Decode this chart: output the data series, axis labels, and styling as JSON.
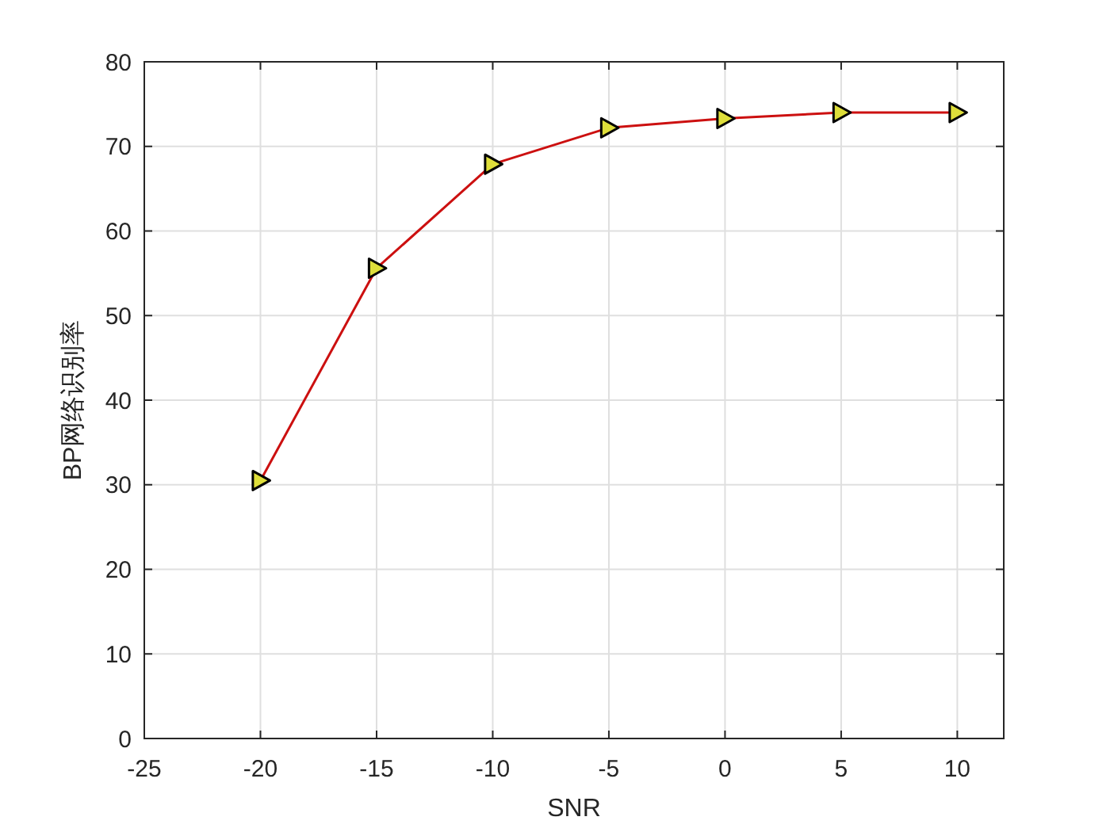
{
  "chart_data": {
    "type": "line",
    "xlabel": "SNR",
    "ylabel": "BP网络识别率",
    "x": [
      -20,
      -15,
      -10,
      -5,
      0,
      5,
      10
    ],
    "series": [
      {
        "color": "#cc1010",
        "values": [
          30.5,
          55.6,
          67.9,
          72.2,
          73.3,
          74.0,
          74.0
        ]
      }
    ],
    "xlim": [
      -25,
      12
    ],
    "xticks": [
      -25,
      -20,
      -15,
      -10,
      -5,
      0,
      5,
      10
    ],
    "ylim": [
      0,
      80
    ],
    "yticks": [
      0,
      10,
      20,
      30,
      40,
      50,
      60,
      70,
      80
    ],
    "grid": true,
    "marker": "triangle",
    "line_style": "solid"
  }
}
